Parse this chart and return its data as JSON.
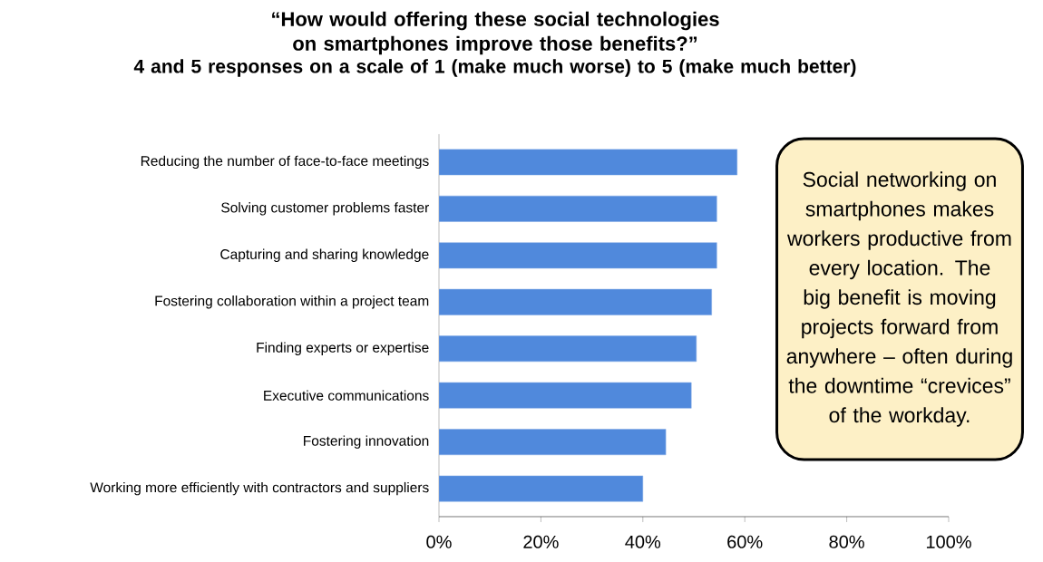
{
  "chart_data": {
    "type": "bar",
    "orientation": "horizontal",
    "title": "“How would offering these social technologies on smartphones improve those benefits?”",
    "subtitle": "4 and 5 responses on a scale of 1 (make much worse) to 5 (make much better)",
    "categories": [
      "Reducing the number of face-to-face meetings",
      "Solving customer problems faster",
      "Capturing and sharing knowledge",
      "Fostering collaboration within a project team",
      "Finding experts or expertise",
      "Executive communications",
      "Fostering innovation",
      "Working more efficiently with contractors and suppliers"
    ],
    "values": [
      58.5,
      54.5,
      54.5,
      53.5,
      50.5,
      49.5,
      44.5,
      40
    ],
    "color": "#5089dc",
    "xlim": [
      0,
      100
    ],
    "xticks": [
      {
        "value": 0,
        "label": "0%"
      },
      {
        "value": 20,
        "label": "20%"
      },
      {
        "value": 40,
        "label": "40%"
      },
      {
        "value": 60,
        "label": "60%"
      },
      {
        "value": 80,
        "label": "80%"
      },
      {
        "value": 100,
        "label": "100%"
      }
    ],
    "annotations": [
      "Social networking on smartphones makes workers productive from every location. The big benefit is moving projects forward from anywhere – often during the downtime “crevices” of the workday."
    ]
  }
}
